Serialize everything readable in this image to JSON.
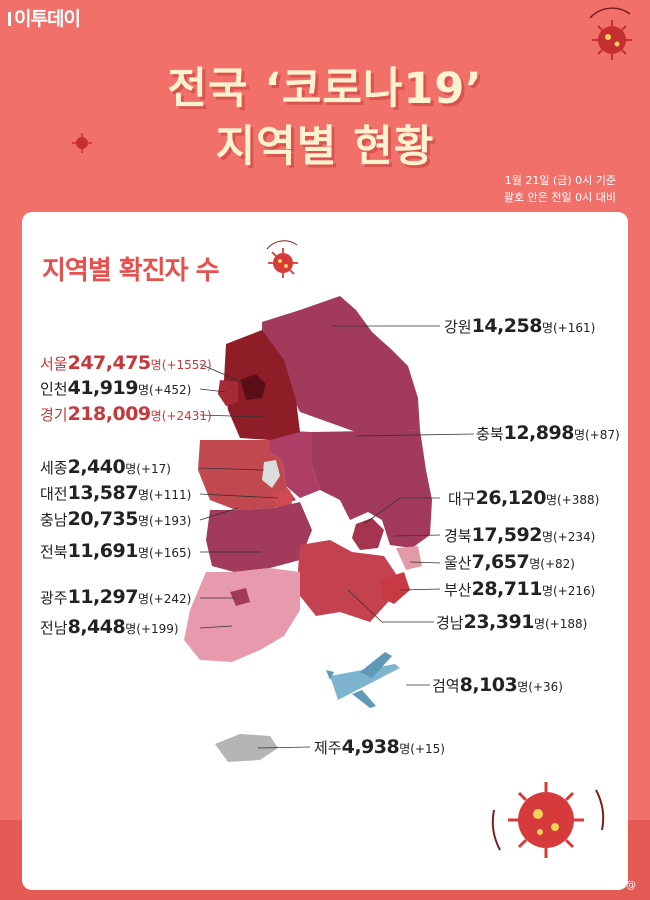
{
  "brand": "이투데이",
  "title_line1": "전국 ‘코로나19’",
  "title_line2": "지역별 현황",
  "date_note_line1": "1월 21일 (금) 0시 기준",
  "date_note_line2": "괄호 안은 전일 0시 대비",
  "footer": "디자인 김다애 디자이너 mngbn@",
  "colors": {
    "background": "#f2706a",
    "title": "#fff2cf",
    "accent_red": "#c6383a",
    "card": "#ffffff"
  },
  "chart_data": {
    "type": "map",
    "title": "지역별 확진자 수",
    "unit": "명",
    "regions": [
      {
        "name": "서울",
        "value": "247,475",
        "change": "(+1552)",
        "highlight": true
      },
      {
        "name": "인천",
        "value": "41,919",
        "change": "(+452)",
        "highlight": false
      },
      {
        "name": "경기",
        "value": "218,009",
        "change": "(+2431)",
        "highlight": true
      },
      {
        "name": "세종",
        "value": "2,440",
        "change": "(+17)",
        "highlight": false
      },
      {
        "name": "대전",
        "value": "13,587",
        "change": "(+111)",
        "highlight": false
      },
      {
        "name": "충남",
        "value": "20,735",
        "change": "(+193)",
        "highlight": false
      },
      {
        "name": "전북",
        "value": "11,691",
        "change": "(+165)",
        "highlight": false
      },
      {
        "name": "광주",
        "value": "11,297",
        "change": "(+242)",
        "highlight": false
      },
      {
        "name": "전남",
        "value": "8,448",
        "change": "(+199)",
        "highlight": false
      },
      {
        "name": "강원",
        "value": "14,258",
        "change": "(+161)",
        "highlight": false
      },
      {
        "name": "충북",
        "value": "12,898",
        "change": "(+87)",
        "highlight": false
      },
      {
        "name": "대구",
        "value": "26,120",
        "change": "(+388)",
        "highlight": false
      },
      {
        "name": "경북",
        "value": "17,592",
        "change": "(+234)",
        "highlight": false
      },
      {
        "name": "울산",
        "value": "7,657",
        "change": "(+82)",
        "highlight": false
      },
      {
        "name": "부산",
        "value": "28,711",
        "change": "(+216)",
        "highlight": false
      },
      {
        "name": "경남",
        "value": "23,391",
        "change": "(+188)",
        "highlight": false
      },
      {
        "name": "검역",
        "value": "8,103",
        "change": "(+36)",
        "highlight": false
      },
      {
        "name": "제주",
        "value": "4,938",
        "change": "(+15)",
        "highlight": false
      }
    ]
  }
}
